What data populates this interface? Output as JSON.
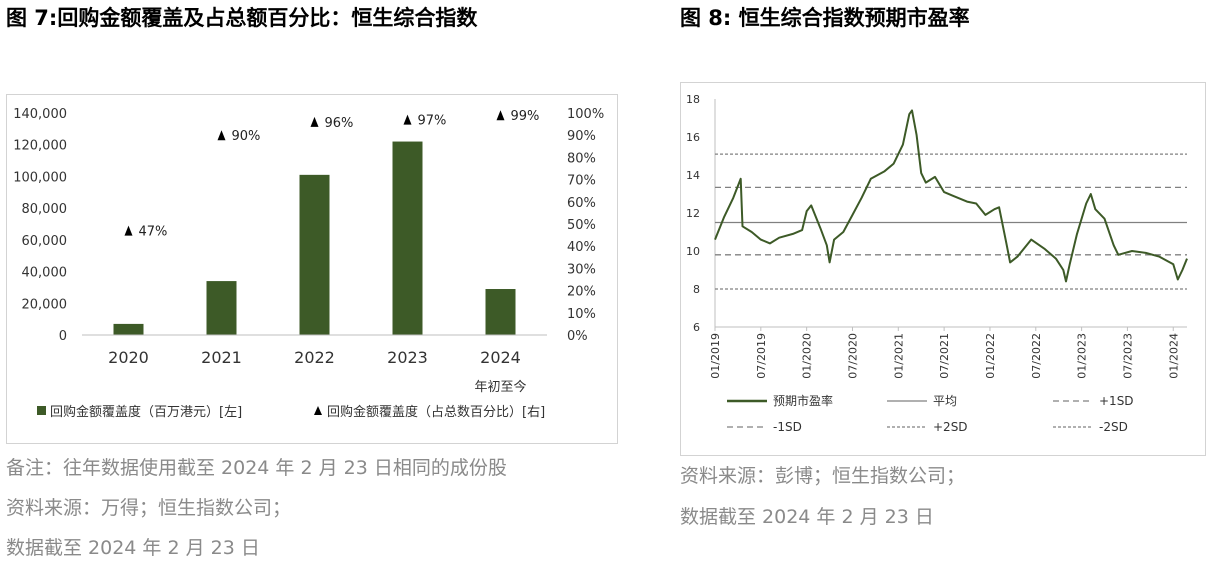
{
  "figure7": {
    "title": "图 7:回购金额覆盖及占总额百分比：恒生综合指数",
    "notes": [
      "备注：往年数据使用截至 2024 年 2 月 23 日相同的成份股",
      "资料来源：万得；恒生指数公司；",
      "数据截至  2024 年 2 月 23 日"
    ]
  },
  "figure8": {
    "title": "图 8:  恒生综合指数预期市盈率",
    "notes": [
      "资料来源：彭博；恒生指数公司；",
      "数据截至  2024 年 2 月 23 日"
    ]
  },
  "chart_data": [
    {
      "type": "bar",
      "categories": [
        "2020",
        "2021",
        "2022",
        "2023",
        "2024"
      ],
      "category_sublabels": [
        "",
        "",
        "",
        "",
        "年初至今"
      ],
      "series": [
        {
          "name": "回购金额覆盖度（百万港元）[左]",
          "type": "bar",
          "axis": "left",
          "color": "#3d5a27",
          "values": [
            7000,
            34000,
            101000,
            122000,
            29000
          ]
        },
        {
          "name": "回购金额覆盖度（占总数百分比）[右]",
          "type": "marker",
          "axis": "right",
          "color": "#000000",
          "values": [
            47,
            90,
            96,
            97,
            99
          ],
          "labels": [
            "47%",
            "90%",
            "96%",
            "97%",
            "99%"
          ]
        }
      ],
      "y_left": {
        "min": 0,
        "max": 140000,
        "step": 20000,
        "ticks": [
          "0",
          "20,000",
          "40,000",
          "60,000",
          "80,000",
          "100,000",
          "120,000",
          "140,000"
        ]
      },
      "y_right": {
        "min": 0,
        "max": 100,
        "step": 10,
        "ticks": [
          "0%",
          "10%",
          "20%",
          "30%",
          "40%",
          "50%",
          "60%",
          "70%",
          "80%",
          "90%",
          "100%"
        ]
      },
      "legend": [
        "回购金额覆盖度（百万港元）[左]",
        "回购金额覆盖度（占总数百分比）[右]"
      ],
      "legend_position": "bottom"
    },
    {
      "type": "line",
      "series": [
        {
          "name": "预期市盈率",
          "color": "#3d5a27",
          "style": "solid",
          "points": [
            [
              2019.0,
              10.6
            ],
            [
              2019.1,
              11.8
            ],
            [
              2019.2,
              12.8
            ],
            [
              2019.28,
              13.8
            ],
            [
              2019.3,
              11.3
            ],
            [
              2019.4,
              11.0
            ],
            [
              2019.5,
              10.6
            ],
            [
              2019.6,
              10.4
            ],
            [
              2019.7,
              10.7
            ],
            [
              2019.85,
              10.9
            ],
            [
              2019.95,
              11.1
            ],
            [
              2020.0,
              12.1
            ],
            [
              2020.05,
              12.4
            ],
            [
              2020.15,
              11.2
            ],
            [
              2020.22,
              10.3
            ],
            [
              2020.25,
              9.4
            ],
            [
              2020.3,
              10.6
            ],
            [
              2020.4,
              11.0
            ],
            [
              2020.5,
              11.9
            ],
            [
              2020.6,
              12.8
            ],
            [
              2020.7,
              13.8
            ],
            [
              2020.85,
              14.2
            ],
            [
              2020.95,
              14.6
            ],
            [
              2021.05,
              15.6
            ],
            [
              2021.12,
              17.2
            ],
            [
              2021.15,
              17.4
            ],
            [
              2021.2,
              16.1
            ],
            [
              2021.25,
              14.1
            ],
            [
              2021.3,
              13.6
            ],
            [
              2021.4,
              13.9
            ],
            [
              2021.5,
              13.1
            ],
            [
              2021.6,
              12.9
            ],
            [
              2021.75,
              12.6
            ],
            [
              2021.85,
              12.5
            ],
            [
              2021.95,
              11.9
            ],
            [
              2022.05,
              12.2
            ],
            [
              2022.1,
              12.3
            ],
            [
              2022.18,
              10.4
            ],
            [
              2022.22,
              9.4
            ],
            [
              2022.3,
              9.7
            ],
            [
              2022.45,
              10.6
            ],
            [
              2022.6,
              10.1
            ],
            [
              2022.72,
              9.6
            ],
            [
              2022.8,
              9.0
            ],
            [
              2022.83,
              8.4
            ],
            [
              2022.87,
              9.3
            ],
            [
              2022.95,
              10.9
            ],
            [
              2023.05,
              12.5
            ],
            [
              2023.1,
              13.0
            ],
            [
              2023.15,
              12.2
            ],
            [
              2023.25,
              11.7
            ],
            [
              2023.35,
              10.3
            ],
            [
              2023.4,
              9.8
            ],
            [
              2023.55,
              10.0
            ],
            [
              2023.7,
              9.9
            ],
            [
              2023.85,
              9.7
            ],
            [
              2024.0,
              9.3
            ],
            [
              2024.05,
              8.5
            ],
            [
              2024.1,
              9.0
            ],
            [
              2024.15,
              9.6
            ]
          ]
        },
        {
          "name": "平均",
          "color": "#808080",
          "style": "solid",
          "value": 11.5
        },
        {
          "name": "+1SD",
          "color": "#808080",
          "style": "dash",
          "value": 13.35
        },
        {
          "name": "-1SD",
          "color": "#808080",
          "style": "dash",
          "value": 9.8
        },
        {
          "name": "+2SD",
          "color": "#808080",
          "style": "dot",
          "value": 15.1
        },
        {
          "name": "-2SD",
          "color": "#808080",
          "style": "dot",
          "value": 8.0
        }
      ],
      "x_range": [
        2019.0,
        2024.15
      ],
      "x_ticks": [
        "01/2019",
        "07/2019",
        "01/2020",
        "07/2020",
        "01/2021",
        "07/2021",
        "01/2022",
        "07/2022",
        "01/2023",
        "07/2023",
        "01/2024"
      ],
      "y_range": [
        6,
        18
      ],
      "y_ticks": [
        "6",
        "8",
        "10",
        "12",
        "14",
        "16",
        "18"
      ],
      "legend": [
        "预期市盈率",
        "平均",
        "+1SD",
        "-1SD",
        "+2SD",
        "-2SD"
      ],
      "legend_position": "bottom"
    }
  ]
}
